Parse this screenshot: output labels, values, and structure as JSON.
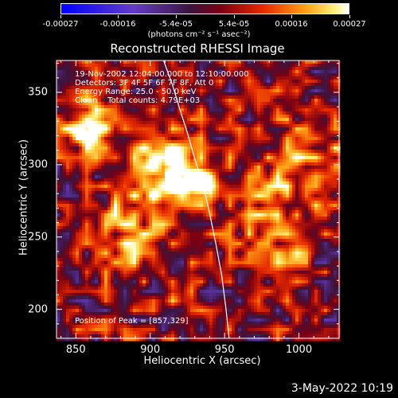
{
  "colorbar": {
    "ticks": [
      "-0.00027",
      "-0.00016",
      "-5.4e-05",
      "5.4e-05",
      "0.00016",
      "0.00027"
    ],
    "units": "(photons cm⁻² s⁻¹ asec⁻²)",
    "range": [
      -0.00027,
      0.00027
    ]
  },
  "chart_data": {
    "type": "heatmap",
    "title": "Reconstructed RHESSI Image",
    "xlabel": "Heliocentric X (arcsec)",
    "ylabel": "Heliocentric Y (arcsec)",
    "xlim": [
      837,
      1027
    ],
    "ylim": [
      180,
      372
    ],
    "xticks": [
      850,
      900,
      950,
      1000
    ],
    "yticks": [
      200,
      250,
      300,
      350
    ],
    "xtick_labels": [
      "850",
      "900",
      "950",
      "1000"
    ],
    "ytick_labels": [
      "200",
      "250",
      "300",
      "350"
    ],
    "limb_curve": {
      "x": [
        909,
        915,
        920,
        925,
        930,
        936,
        940,
        944,
        948,
        951,
        953
      ],
      "y": [
        372,
        355,
        338,
        322,
        304,
        284,
        266,
        246,
        224,
        200,
        180
      ]
    },
    "annotations": [
      "19-Nov-2002 12:04:00.000 to 12:10:00.000",
      "Detectors: 3F 4F 5F 6F 7F 8F, Att 0",
      "Energy Range: 25.0 - 50.0 keV",
      "Clean    Total counts: 4.79E+03"
    ],
    "peak_label": "Position of Peak = [857,329]",
    "peak": [
      857,
      329
    ]
  },
  "timestamp": "3-May-2022 10:19"
}
